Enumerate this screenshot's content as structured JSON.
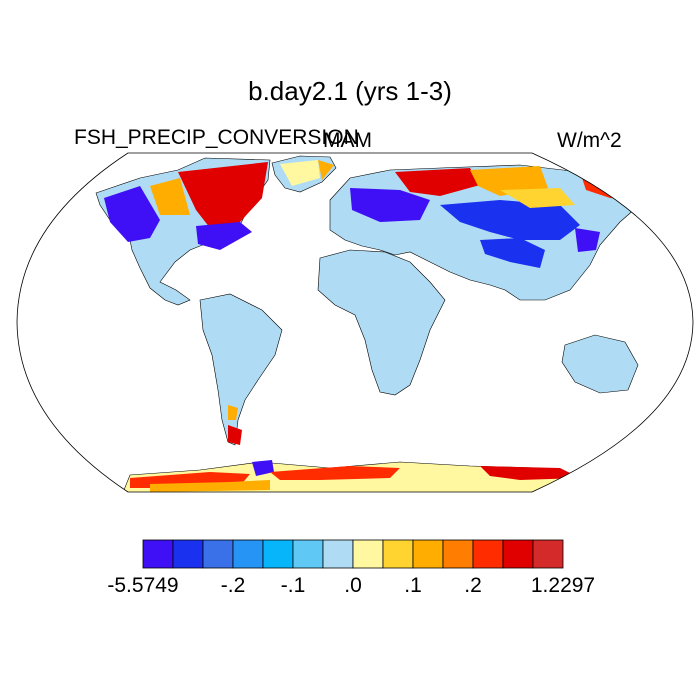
{
  "title": "b.day2.1 (yrs 1-3)",
  "variable": "FSH_PRECIP_CONVERSION",
  "season": "MAM",
  "units": "W/m^2",
  "colorbar": {
    "colors": [
      "#3f0ff5",
      "#1a31f0",
      "#3a71e8",
      "#2694f5",
      "#07b5fb",
      "#5fc8f5",
      "#afdcf4",
      "#fff8a0",
      "#ffd431",
      "#ffad00",
      "#ff7d00",
      "#ff2c00",
      "#e10000",
      "#d52a2a"
    ],
    "tick_labels": [
      {
        "label": "-5.5749",
        "boundary": 0
      },
      {
        "label": "-.2",
        "boundary": 3
      },
      {
        "label": "-.1",
        "boundary": 5
      },
      {
        "label": ".0",
        "boundary": 7
      },
      {
        "label": ".1",
        "boundary": 9
      },
      {
        "label": ".2",
        "boundary": 11
      },
      {
        "label": "1.2297",
        "boundary": 14
      }
    ]
  },
  "map_colors": {
    "ocean": "#ffffff",
    "land_near_zero": "#afdcf4",
    "coast": "#000000"
  }
}
